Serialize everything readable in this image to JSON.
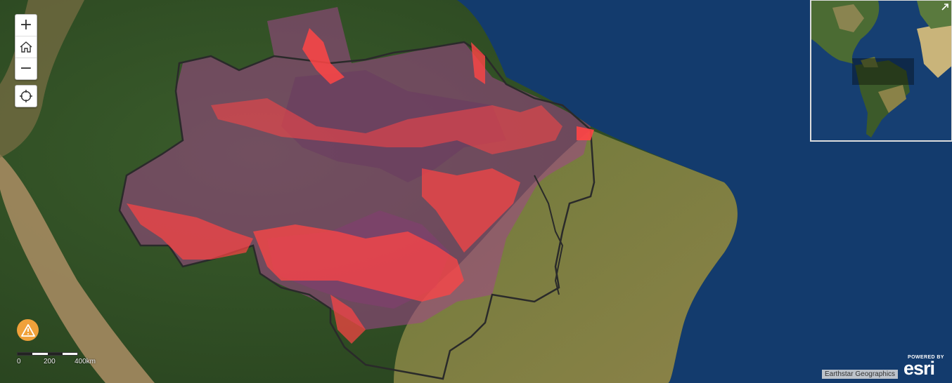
{
  "map": {
    "basemap": "satellite-imagery",
    "colors": {
      "ocean": "#123a6e",
      "land_forest": "#2e4d23",
      "land_savanna": "#7a7a3d",
      "andes": "#b89a6e",
      "protected_area": "#a0468a",
      "deforestation_hotspot": "#ff4040",
      "border": "#2a2a2a"
    }
  },
  "controls": {
    "zoom_in_icon": "plus-icon",
    "home_icon": "home-icon",
    "zoom_out_icon": "minus-icon",
    "locate_icon": "crosshair-icon",
    "warning_icon": "warning-icon"
  },
  "scalebar": {
    "labels": [
      "0",
      "200",
      "400km"
    ]
  },
  "attribution": "Earthstar Geographics",
  "branding": {
    "powered_by": "POWERED BY",
    "name": "esri"
  },
  "overview": {
    "toggle_icon": "collapse-arrow-icon"
  }
}
